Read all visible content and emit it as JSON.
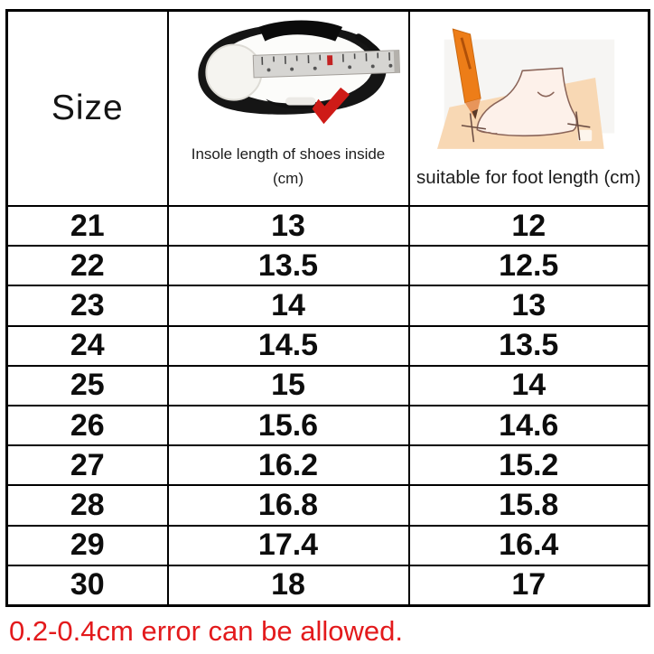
{
  "chart_data": {
    "type": "table",
    "columns": [
      "Size",
      "Insole length of shoes inside (cm)",
      "suitable for foot length (cm)"
    ],
    "rows": [
      [
        "21",
        "13",
        "12"
      ],
      [
        "22",
        "13.5",
        "12.5"
      ],
      [
        "23",
        "14",
        "13"
      ],
      [
        "24",
        "14.5",
        "13.5"
      ],
      [
        "25",
        "15",
        "14"
      ],
      [
        "26",
        "15.6",
        "14.6"
      ],
      [
        "27",
        "16.2",
        "15.2"
      ],
      [
        "28",
        "16.8",
        "15.8"
      ],
      [
        "29",
        "17.4",
        "16.4"
      ],
      [
        "30",
        "18",
        "17"
      ]
    ]
  },
  "header": {
    "size_label": "Size",
    "insole_caption_line1": "Insole length of shoes inside",
    "insole_caption_line2": "(cm)",
    "foot_caption": "suitable for foot length (cm)",
    "icons": {
      "shoe": "shoe-insole-measuring-tape-image",
      "foot": "foot-tracing-pencil-image",
      "check": "red-check-mark-icon"
    }
  },
  "footer": {
    "note": "0.2-0.4cm error can be allowed."
  },
  "colors": {
    "border": "#000000",
    "note_red": "#e31a1c",
    "check_red": "#ce1b17",
    "pencil_orange": "#ed7d18",
    "paper_peach": "#f8d8b4",
    "tape_gray": "#d6d5d2"
  }
}
